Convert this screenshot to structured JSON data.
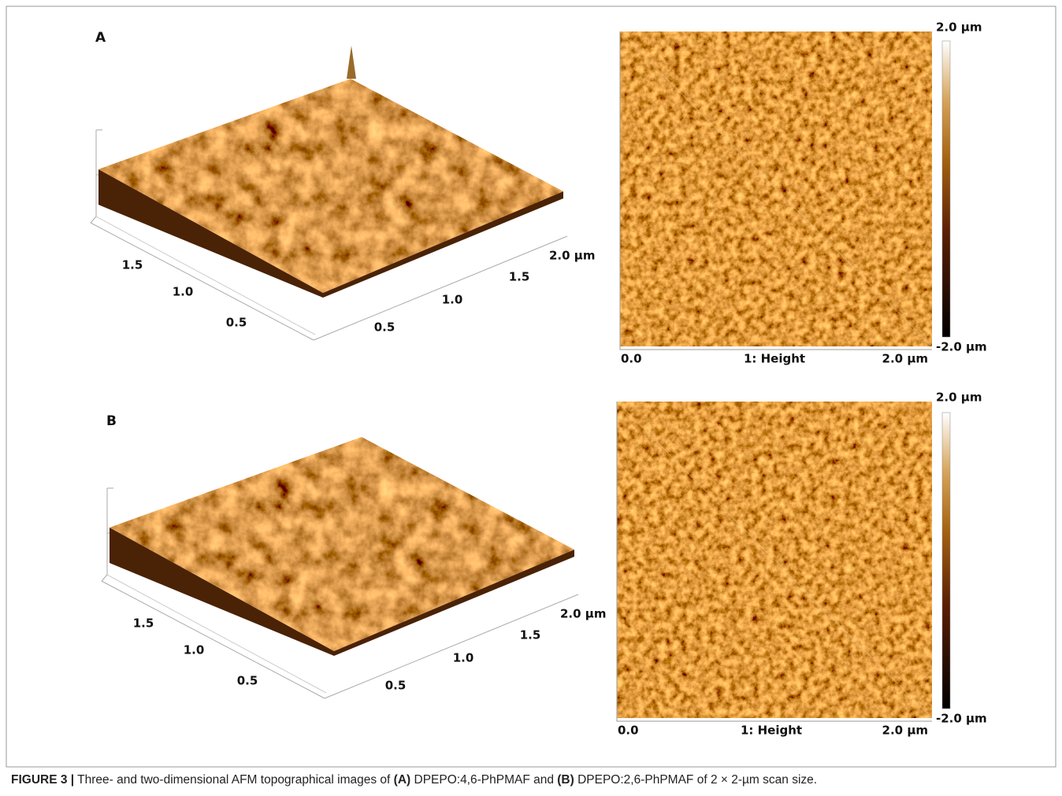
{
  "panels": [
    {
      "label": "A",
      "surface_axis_left": [
        "1.5",
        "1.0",
        "0.5"
      ],
      "surface_axis_right": [
        "0.5",
        "1.0",
        "1.5",
        "2.0 µm"
      ],
      "colorbar": {
        "max": "2.0 µm",
        "min": "-2.0 µm"
      },
      "map_axis": {
        "start": "0.0",
        "title": "1: Height",
        "end": "2.0 µm"
      }
    },
    {
      "label": "B",
      "surface_axis_left": [
        "1.5",
        "1.0",
        "0.5"
      ],
      "surface_axis_right": [
        "0.5",
        "1.0",
        "1.5",
        "2.0 µm"
      ],
      "colorbar": {
        "max": "2.0 µm",
        "min": "-2.0 µm"
      },
      "map_axis": {
        "start": "0.0",
        "title": "1: Height",
        "end": "2.0 µm"
      }
    }
  ],
  "caption": {
    "label": "FIGURE 3 |",
    "parts": [
      " Three- and two-dimensional AFM topographical images of ",
      "(A)",
      " DPEPO:4,6-PhPMAF and ",
      "(B)",
      " DPEPO:2,6-PhPMAF of 2 × 2-µm scan size."
    ]
  }
}
